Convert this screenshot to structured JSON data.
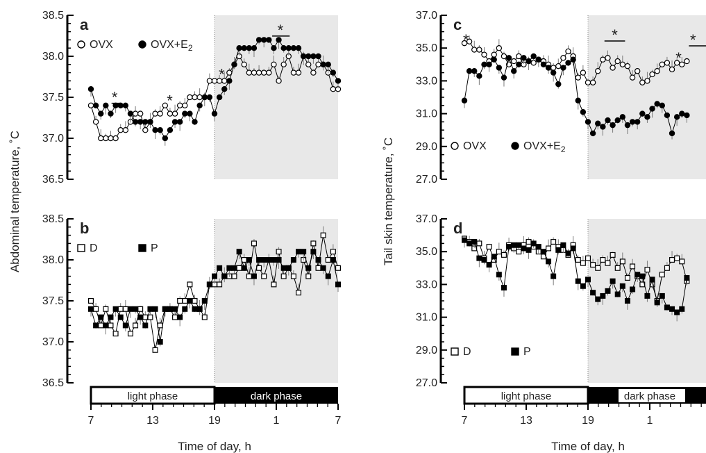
{
  "chart_data": [
    {
      "type": "line",
      "panel_label": "a",
      "ylabel": "Abdominal temperature, ˚C",
      "ylim": [
        36.5,
        38.5
      ],
      "yticks": [
        "36.5",
        "37.0",
        "37.5",
        "38.0",
        "38.5"
      ],
      "xlim": [
        0,
        24
      ],
      "xticks": [
        "7",
        "13",
        "19",
        "1",
        "7"
      ],
      "shaded": "19–7 (dark phase)",
      "series": [
        {
          "name": "OVX",
          "marker": "open-circle",
          "values": [
            37.4,
            37.2,
            37.0,
            37.0,
            37.0,
            37.0,
            37.1,
            37.1,
            37.2,
            37.3,
            37.3,
            37.1,
            37.2,
            37.3,
            37.3,
            37.4,
            37.3,
            37.3,
            37.4,
            37.4,
            37.5,
            37.5,
            37.5,
            37.5,
            37.7,
            37.7,
            37.7,
            37.7,
            37.8,
            37.9,
            38.0,
            37.9,
            37.8,
            37.8,
            37.8,
            37.8,
            37.8,
            37.9,
            37.7,
            37.9,
            38.0,
            37.8,
            37.8,
            38.0,
            37.9,
            37.8,
            37.9,
            37.9,
            37.8,
            37.6,
            37.6
          ]
        },
        {
          "name": "OVX+E2",
          "marker": "filled-circle",
          "values": [
            37.6,
            37.4,
            37.3,
            37.4,
            37.3,
            37.4,
            37.4,
            37.4,
            37.3,
            37.2,
            37.2,
            37.2,
            37.2,
            37.1,
            37.1,
            37.0,
            37.1,
            37.2,
            37.2,
            37.3,
            37.3,
            37.2,
            37.4,
            37.5,
            37.5,
            37.3,
            37.5,
            37.6,
            37.7,
            37.9,
            38.1,
            38.1,
            38.1,
            38.1,
            38.2,
            38.2,
            38.2,
            38.1,
            38.2,
            38.1,
            38.1,
            38.1,
            38.1,
            38.0,
            38.0,
            38.0,
            38.0,
            37.9,
            37.9,
            37.8,
            37.7
          ]
        }
      ],
      "legend": [
        "OVX",
        "OVX+E2"
      ],
      "significance": [
        {
          "x": 2.3,
          "y": 37.52,
          "from": 2.0,
          "to": 2.9
        },
        {
          "x": 7.65,
          "y": 37.48
        },
        {
          "x": 12.7,
          "y": 37.8
        },
        {
          "x": 18.4,
          "y": 38.34,
          "from": 17.6,
          "to": 19.3
        }
      ]
    },
    {
      "type": "line",
      "panel_label": "b",
      "ylim": [
        36.5,
        38.5
      ],
      "yticks": [
        "36.5",
        "37.0",
        "37.5",
        "38.0",
        "38.5"
      ],
      "xlim": [
        0,
        24
      ],
      "xticks": [
        "7",
        "13",
        "19",
        "1",
        "7"
      ],
      "series": [
        {
          "name": "D",
          "marker": "open-square",
          "values": [
            37.5,
            37.4,
            37.2,
            37.4,
            37.2,
            37.1,
            37.4,
            37.4,
            37.1,
            37.2,
            37.4,
            37.3,
            37.3,
            36.9,
            37.2,
            37.4,
            37.4,
            37.3,
            37.5,
            37.5,
            37.7,
            37.5,
            37.4,
            37.3,
            37.7,
            37.7,
            37.7,
            37.8,
            37.8,
            37.8,
            37.9,
            38.0,
            37.8,
            38.2,
            37.9,
            37.8,
            38.0,
            37.7,
            38.1,
            37.8,
            37.9,
            37.8,
            37.6,
            38.0,
            37.8,
            38.2,
            37.9,
            38.3,
            38.0,
            38.1,
            37.9
          ]
        },
        {
          "name": "P",
          "marker": "filled-square",
          "values": [
            37.4,
            37.2,
            37.3,
            37.2,
            37.3,
            37.4,
            37.3,
            37.2,
            37.4,
            37.4,
            37.3,
            37.2,
            37.4,
            37.4,
            37.0,
            37.4,
            37.4,
            37.4,
            37.3,
            37.4,
            37.5,
            37.4,
            37.4,
            37.5,
            37.7,
            37.8,
            37.9,
            37.8,
            37.9,
            37.9,
            38.1,
            37.9,
            38.0,
            37.8,
            38.0,
            38.0,
            38.0,
            38.0,
            38.0,
            37.9,
            37.9,
            38.0,
            38.1,
            38.1,
            37.9,
            38.1,
            38.0,
            37.9,
            37.8,
            38.0,
            37.7
          ]
        }
      ],
      "legend": [
        "D",
        "P"
      ]
    },
    {
      "type": "line",
      "panel_label": "c",
      "ylabel": "Tail skin temperature, ˚C",
      "ylim": [
        27.0,
        37.0
      ],
      "yticks": [
        "27.0",
        "29.0",
        "31.0",
        "33.0",
        "35.0",
        "37.0"
      ],
      "xlim": [
        0,
        24
      ],
      "xticks": [
        "7",
        "13",
        "19",
        "1"
      ],
      "shaded": "19–7 (dark phase)",
      "series": [
        {
          "name": "OVX",
          "marker": "open-circle",
          "values": [
            35.3,
            35.4,
            34.9,
            34.9,
            34.6,
            34.2,
            34.6,
            35.0,
            34.5,
            34.0,
            34.2,
            34.5,
            34.0,
            34.2,
            34.1,
            34.3,
            34.2,
            34.0,
            33.8,
            33.9,
            34.4,
            34.8,
            34.5,
            33.2,
            33.5,
            32.9,
            32.9,
            33.6,
            34.3,
            34.4,
            33.8,
            34.2,
            34.0,
            33.9,
            33.2,
            33.6,
            32.9,
            33.0,
            33.4,
            33.6,
            34.0,
            34.1,
            33.7,
            34.1,
            34.0,
            34.2
          ]
        },
        {
          "name": "OVX+E2",
          "marker": "filled-circle",
          "values": [
            31.8,
            33.6,
            33.6,
            33.3,
            34.0,
            34.0,
            34.3,
            33.8,
            33.2,
            34.4,
            33.6,
            34.0,
            34.4,
            34.2,
            34.5,
            34.3,
            34.0,
            33.8,
            33.5,
            32.8,
            33.8,
            34.1,
            34.3,
            31.8,
            31.1,
            30.5,
            29.8,
            30.4,
            30.2,
            30.6,
            30.3,
            30.6,
            30.8,
            30.3,
            30.5,
            30.5,
            31.0,
            30.8,
            31.3,
            31.6,
            31.5,
            30.9,
            29.8,
            30.8,
            31.0,
            30.9
          ]
        }
      ],
      "legend": [
        "OVX",
        "OVX+E2"
      ],
      "significance": [
        {
          "x": 0.15,
          "y": 35.6
        },
        {
          "x": 14.6,
          "y": 35.9,
          "from": 13.6,
          "to": 15.6
        },
        {
          "x": 20.8,
          "y": 34.5
        },
        {
          "x": 22.2,
          "y": 35.6,
          "from": 21.8,
          "to": 23.8
        }
      ]
    },
    {
      "type": "line",
      "panel_label": "d",
      "ylim": [
        27.0,
        37.0
      ],
      "yticks": [
        "27.0",
        "29.0",
        "31.0",
        "33.0",
        "35.0",
        "37.0"
      ],
      "xlim": [
        0,
        24
      ],
      "xticks": [
        "7",
        "13",
        "19",
        "1"
      ],
      "series": [
        {
          "name": "D",
          "marker": "open-square",
          "values": [
            35.8,
            35.6,
            35.2,
            35.5,
            34.6,
            35.3,
            34.5,
            35.0,
            34.8,
            35.4,
            35.2,
            35.0,
            35.4,
            35.6,
            35.3,
            35.0,
            34.7,
            35.2,
            35.6,
            35.3,
            35.1,
            34.8,
            35.4,
            34.5,
            34.3,
            34.6,
            34.2,
            34.0,
            34.5,
            34.3,
            34.8,
            34.0,
            34.4,
            33.4,
            34.1,
            33.5,
            33.0,
            33.9,
            33.0,
            32.0,
            33.6,
            34.0,
            34.5,
            34.6,
            34.4,
            33.2
          ]
        },
        {
          "name": "P",
          "marker": "filled-square",
          "values": [
            35.7,
            35.5,
            35.6,
            34.6,
            34.5,
            34.2,
            34.7,
            33.6,
            32.8,
            35.3,
            35.4,
            35.4,
            35.2,
            35.1,
            35.5,
            35.3,
            35.0,
            34.4,
            33.5,
            35.1,
            35.4,
            34.9,
            35.2,
            33.2,
            32.9,
            33.3,
            32.5,
            32.1,
            32.3,
            32.6,
            33.2,
            32.4,
            32.9,
            32.0,
            32.7,
            33.6,
            33.5,
            32.3,
            33.3,
            31.9,
            32.3,
            31.6,
            31.5,
            31.3,
            31.5,
            33.4
          ]
        }
      ],
      "legend": [
        "D",
        "P"
      ]
    }
  ],
  "xlabel": "Time of day, h",
  "phase_labels": [
    "light phase",
    "dark phase"
  ],
  "colors": {
    "shade": "#e8e8e8",
    "dark_bar": "#000000",
    "marker": "#000000",
    "errorbar": "#7a7a7a"
  }
}
